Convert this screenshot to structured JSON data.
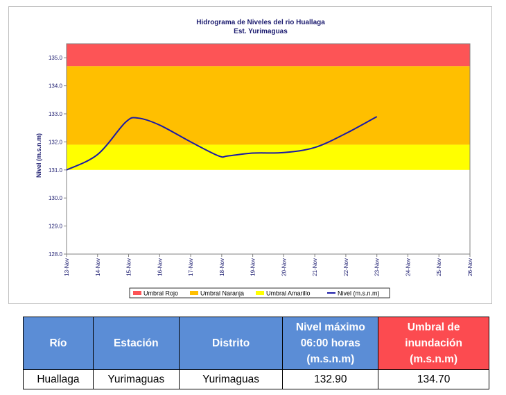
{
  "chart_data": {
    "type": "line",
    "title": "Hidrograma de Niveles del rio Huallaga",
    "subtitle": "Est. Yurimaguas",
    "ylabel": "Nivel (m.s.n.m)",
    "xlabel": "",
    "ylim": [
      128.0,
      135.5
    ],
    "yticks": [
      "128.0",
      "129.0",
      "130.0",
      "131.0",
      "132.0",
      "133.0",
      "134.0",
      "135.0"
    ],
    "categories": [
      "13-Nov",
      "14-Nov",
      "15-Nov",
      "16-Nov",
      "17-Nov",
      "18-Nov",
      "19-Nov",
      "20-Nov",
      "21-Nov",
      "22-Nov",
      "23-Nov",
      "24-Nov",
      "25-Nov",
      "26-Nov"
    ],
    "bands": [
      {
        "name": "Umbral Rojo",
        "from": 134.7,
        "to": 135.5,
        "color": "#fd5456"
      },
      {
        "name": "Umbral Naranja",
        "from": 131.9,
        "to": 134.7,
        "color": "#ffbf00"
      },
      {
        "name": "Umbral Amarillo",
        "from": 131.0,
        "to": 131.9,
        "color": "#ffff00"
      }
    ],
    "series": [
      {
        "name": "Nivel (m.s.n.m)",
        "color": "#1a1aa6",
        "x": [
          "13-Nov",
          "14-Nov",
          "15-Nov",
          "15-Nov",
          "16-Nov",
          "17-Nov",
          "18-Nov",
          "18-Nov",
          "19-Nov",
          "20-Nov",
          "21-Nov",
          "22-Nov",
          "23-Nov"
        ],
        "x_index": [
          0,
          1,
          1.9,
          2.3,
          3,
          4,
          4.9,
          5.2,
          6,
          7,
          8,
          9,
          10
        ],
        "values": [
          131.0,
          131.55,
          132.7,
          132.85,
          132.6,
          132.0,
          131.5,
          131.5,
          131.6,
          131.62,
          131.8,
          132.3,
          132.9
        ]
      }
    ],
    "legend": {
      "position": "bottom",
      "items": [
        {
          "label": "Umbral Rojo",
          "color": "#fd5456",
          "kind": "box"
        },
        {
          "label": "Umbral Naranja",
          "color": "#ffbf00",
          "kind": "box"
        },
        {
          "label": "Umbral Amarillo",
          "color": "#ffff00",
          "kind": "box"
        },
        {
          "label": "Nivel (m.s.n.m)",
          "color": "#1a1aa6",
          "kind": "line"
        }
      ]
    },
    "grid": false
  },
  "table": {
    "headers": {
      "rio": "Río",
      "estacion": "Estación",
      "distrito": "Distrito",
      "nivel_line1": "Nivel máximo",
      "nivel_line2": "06:00 horas",
      "nivel_line3": "(m.s.n.m)",
      "umbral_line1": "Umbral de",
      "umbral_line2": "inundación",
      "umbral_line3": "(m.s.n.m)"
    },
    "row": {
      "rio": "Huallaga",
      "estacion": "Yurimaguas",
      "distrito": "Yurimaguas",
      "nivel": "132.90",
      "umbral": "134.70"
    },
    "header_colors": {
      "blue": "#5b8dd6",
      "red": "#fc4b50"
    }
  }
}
